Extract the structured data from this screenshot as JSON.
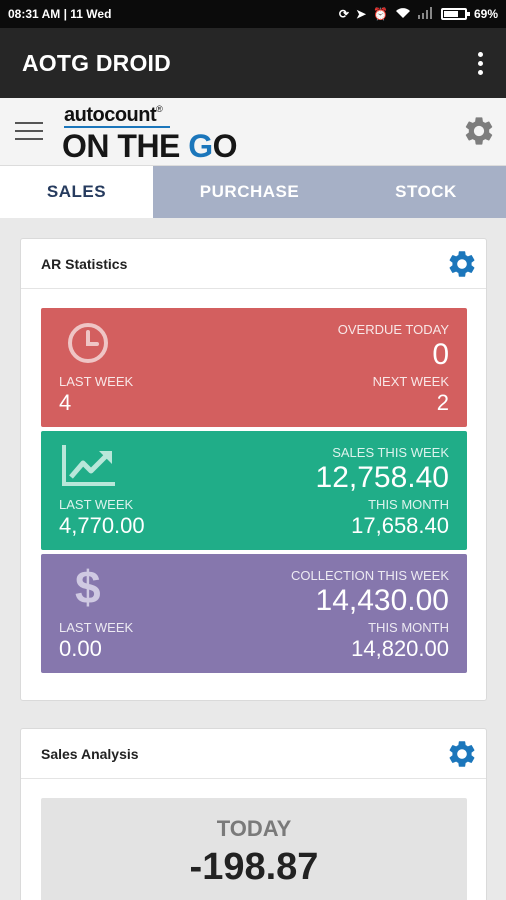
{
  "status_bar": {
    "time_date": "08:31 AM  |  11 Wed",
    "battery": "69%",
    "battery_level": 0.69,
    "icons": [
      "sync-icon",
      "location-arrow-icon",
      "alarm-icon",
      "wifi-icon",
      "signal-icon",
      "battery-icon"
    ]
  },
  "app_bar": {
    "title": "AOTG DROID",
    "menu_icon": "kebab-menu-icon"
  },
  "brand": {
    "top": "autocount",
    "reg": "®",
    "main_prefix": "ON THE ",
    "main_accent": "G",
    "main_suffix": "O",
    "accent_color": "#1b76bb"
  },
  "tabs": [
    {
      "label": "SALES",
      "active": true
    },
    {
      "label": "PURCHASE",
      "active": false
    },
    {
      "label": "STOCK",
      "active": false
    }
  ],
  "ar_statistics": {
    "title": "AR Statistics",
    "tiles": [
      {
        "color": "#d35f5f",
        "icon": "clock-icon",
        "tr_label": "OVERDUE TODAY",
        "tr_value": "0",
        "bl_label": "LAST WEEK",
        "bl_value": "4",
        "br_label": "NEXT WEEK",
        "br_value": "2"
      },
      {
        "color": "#20ad88",
        "icon": "trend-chart-icon",
        "tr_label": "SALES THIS WEEK",
        "tr_value": "12,758.40",
        "bl_label": "LAST WEEK",
        "bl_value": "4,770.00",
        "br_label": "THIS MONTH",
        "br_value": "17,658.40"
      },
      {
        "color": "#8677ad",
        "icon": "dollar-icon",
        "tr_label": "COLLECTION THIS WEEK",
        "tr_value": "14,430.00",
        "bl_label": "LAST WEEK",
        "bl_value": "0.00",
        "br_label": "THIS MONTH",
        "br_value": "14,820.00"
      }
    ]
  },
  "sales_analysis": {
    "title": "Sales Analysis",
    "period_label": "TODAY",
    "value": "-198.87"
  },
  "colors": {
    "gear": "#1b76bb",
    "tab_active_text": "#263b5e",
    "tab_bg": "#a6b0c6"
  }
}
